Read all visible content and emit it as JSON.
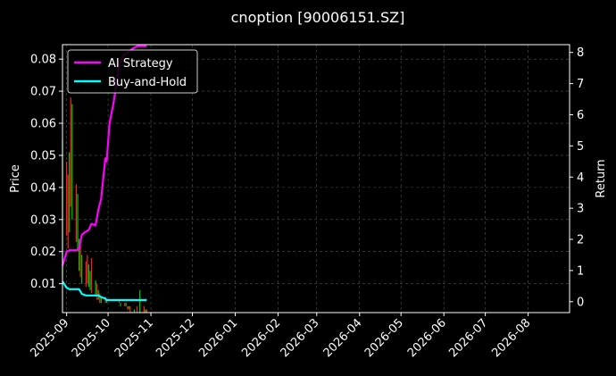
{
  "chart_data": {
    "type": "line",
    "title": "cnoption [90006151.SZ]",
    "ylabel_left": "Price",
    "ylabel_right": "Return",
    "grid": true,
    "legend_placement": "upper-left",
    "xlim": [
      "2025-08-29",
      "2026-08-31"
    ],
    "ylim_left": [
      0.001,
      0.0845
    ],
    "ylim_right": [
      -0.35,
      8.25
    ],
    "x_tick_labels": [
      "2025-09",
      "2025-10",
      "2025-11",
      "2025-12",
      "2026-01",
      "2026-02",
      "2026-03",
      "2026-04",
      "2026-05",
      "2026-06",
      "2026-07",
      "2026-08"
    ],
    "x_tick_dates": [
      "2025-09-01",
      "2025-10-01",
      "2025-11-01",
      "2025-12-01",
      "2026-01-01",
      "2026-02-01",
      "2026-03-01",
      "2026-04-01",
      "2026-05-01",
      "2026-06-01",
      "2026-07-01",
      "2026-08-01"
    ],
    "y_left_ticks": [
      0.01,
      0.02,
      0.03,
      0.04,
      0.05,
      0.06,
      0.07,
      0.08
    ],
    "y_left_tick_labels": [
      "0.01",
      "0.02",
      "0.03",
      "0.04",
      "0.05",
      "0.06",
      "0.07",
      "0.08"
    ],
    "y_right_ticks": [
      0,
      1,
      2,
      3,
      4,
      5,
      6,
      7,
      8
    ],
    "y_right_tick_labels": [
      "0",
      "1",
      "2",
      "3",
      "4",
      "5",
      "6",
      "7",
      "8"
    ],
    "colors": {
      "background": "#000000",
      "grid": "#555555",
      "ai_strategy": "#ff00ff",
      "buy_and_hold": "#00ffff",
      "candle_up": "#00cc00",
      "candle_down": "#ff2020"
    },
    "candles": [
      {
        "date": "2025-08-29",
        "high": 0.055,
        "low": 0.012,
        "up": true
      },
      {
        "date": "2025-09-01",
        "high": 0.048,
        "low": 0.025,
        "up": false
      },
      {
        "date": "2025-09-02",
        "high": 0.044,
        "low": 0.021,
        "up": false
      },
      {
        "date": "2025-09-03",
        "high": 0.051,
        "low": 0.026,
        "up": true
      },
      {
        "date": "2025-09-04",
        "high": 0.068,
        "low": 0.034,
        "up": false
      },
      {
        "date": "2025-09-05",
        "high": 0.066,
        "low": 0.03,
        "up": true
      },
      {
        "date": "2025-09-08",
        "high": 0.041,
        "low": 0.023,
        "up": false
      },
      {
        "date": "2025-09-09",
        "high": 0.038,
        "low": 0.02,
        "up": true
      },
      {
        "date": "2025-09-10",
        "high": 0.024,
        "low": 0.014,
        "up": true
      },
      {
        "date": "2025-09-11",
        "high": 0.022,
        "low": 0.012,
        "up": false
      },
      {
        "date": "2025-09-12",
        "high": 0.019,
        "low": 0.01,
        "up": true
      },
      {
        "date": "2025-09-15",
        "high": 0.017,
        "low": 0.009,
        "up": false
      },
      {
        "date": "2025-09-16",
        "high": 0.019,
        "low": 0.01,
        "up": false
      },
      {
        "date": "2025-09-17",
        "high": 0.016,
        "low": 0.009,
        "up": true
      },
      {
        "date": "2025-09-18",
        "high": 0.014,
        "low": 0.008,
        "up": true
      },
      {
        "date": "2025-09-19",
        "high": 0.018,
        "low": 0.007,
        "up": false
      },
      {
        "date": "2025-09-22",
        "high": 0.011,
        "low": 0.006,
        "up": true
      },
      {
        "date": "2025-09-23",
        "high": 0.01,
        "low": 0.005,
        "up": false
      },
      {
        "date": "2025-09-24",
        "high": 0.008,
        "low": 0.005,
        "up": true
      },
      {
        "date": "2025-09-25",
        "high": 0.007,
        "low": 0.004,
        "up": false
      },
      {
        "date": "2025-09-26",
        "high": 0.006,
        "low": 0.004,
        "up": true
      },
      {
        "date": "2025-09-29",
        "high": 0.006,
        "low": 0.004,
        "up": false
      },
      {
        "date": "2025-09-30",
        "high": 0.005,
        "low": 0.004,
        "up": true
      },
      {
        "date": "2025-10-09",
        "high": 0.005,
        "low": 0.004,
        "up": false
      },
      {
        "date": "2025-10-10",
        "high": 0.004,
        "low": 0.003,
        "up": true
      },
      {
        "date": "2025-10-13",
        "high": 0.004,
        "low": 0.003,
        "up": false
      },
      {
        "date": "2025-10-14",
        "high": 0.004,
        "low": 0.003,
        "up": true
      },
      {
        "date": "2025-10-15",
        "high": 0.003,
        "low": 0.002,
        "up": false
      },
      {
        "date": "2025-10-16",
        "high": 0.003,
        "low": 0.002,
        "up": true
      },
      {
        "date": "2025-10-17",
        "high": 0.003,
        "low": 0.001,
        "up": false
      },
      {
        "date": "2025-10-20",
        "high": 0.002,
        "low": 0.001,
        "up": true
      },
      {
        "date": "2025-10-22",
        "high": 0.003,
        "low": 0.001,
        "up": false
      },
      {
        "date": "2025-10-24",
        "high": 0.008,
        "low": 0.001,
        "up": true
      },
      {
        "date": "2025-10-27",
        "high": 0.003,
        "low": 0.001,
        "up": false
      },
      {
        "date": "2025-10-28",
        "high": 0.002,
        "low": 0.001,
        "up": true
      },
      {
        "date": "2025-10-29",
        "high": 0.002,
        "low": 0.001,
        "up": false
      }
    ],
    "series": [
      {
        "name": "AI Strategy",
        "axis": "right",
        "x": [
          "2025-08-29",
          "2025-09-01",
          "2025-09-03",
          "2025-09-05",
          "2025-09-08",
          "2025-09-10",
          "2025-09-12",
          "2025-09-15",
          "2025-09-17",
          "2025-09-19",
          "2025-09-22",
          "2025-09-24",
          "2025-09-26",
          "2025-09-29",
          "2025-09-30",
          "2025-10-02",
          "2025-10-05",
          "2025-10-09",
          "2025-10-12",
          "2025-10-15",
          "2025-10-18",
          "2025-10-22",
          "2025-10-25",
          "2025-10-29"
        ],
        "y": [
          1.15,
          1.6,
          1.65,
          1.65,
          1.65,
          1.7,
          2.15,
          2.25,
          2.3,
          2.5,
          2.45,
          2.95,
          3.3,
          4.6,
          4.5,
          5.7,
          6.4,
          7.6,
          7.9,
          8.0,
          8.1,
          8.2,
          8.2,
          8.2
        ]
      },
      {
        "name": "Buy-and-Hold",
        "axis": "right",
        "x": [
          "2025-08-29",
          "2025-09-01",
          "2025-09-03",
          "2025-09-05",
          "2025-09-08",
          "2025-09-10",
          "2025-09-12",
          "2025-09-15",
          "2025-09-17",
          "2025-09-19",
          "2025-09-22",
          "2025-09-24",
          "2025-09-26",
          "2025-09-29",
          "2025-09-30",
          "2025-10-09",
          "2025-10-15",
          "2025-10-20",
          "2025-10-25",
          "2025-10-29"
        ],
        "y": [
          0.65,
          0.45,
          0.4,
          0.4,
          0.4,
          0.4,
          0.25,
          0.2,
          0.2,
          0.2,
          0.2,
          0.2,
          0.15,
          0.1,
          0.05,
          0.05,
          0.05,
          0.05,
          0.05,
          0.05
        ]
      }
    ]
  }
}
